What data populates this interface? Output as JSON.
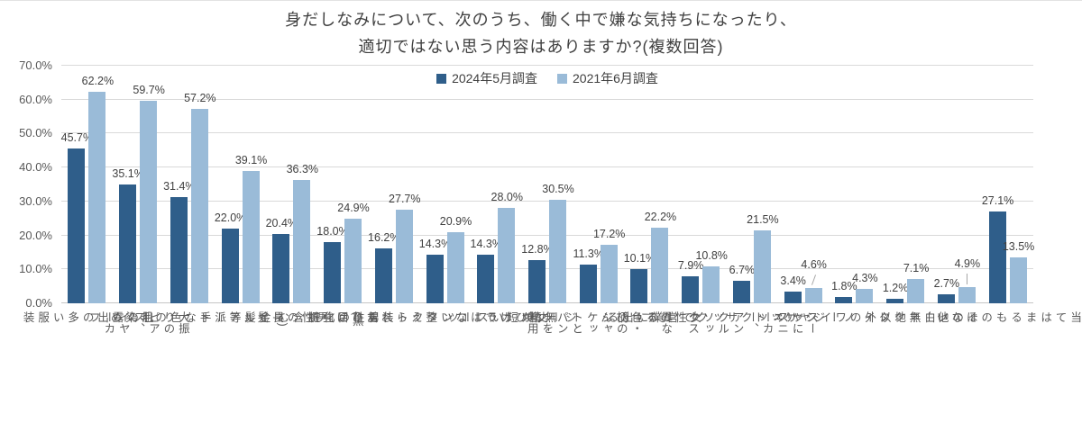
{
  "title": {
    "line1": "身だしなみについて、次のうち、働く中で嫌な気持ちになったり、",
    "line2": "適切ではない思う内容はありますか?(複数回答)"
  },
  "colors": {
    "series_2024": "#2f5e8a",
    "series_2021": "#9abbd8",
    "gridline": "#d9d9d9",
    "axis_text": "#595959",
    "label_text": "#404040"
  },
  "chart_data": {
    "type": "bar",
    "title": "身だしなみについて、次のうち、働く中で嫌な気持ちになったり、適切ではない思う内容はありますか?(複数回答)",
    "xlabel": "",
    "ylabel": "",
    "ylim": [
      0,
      70
    ],
    "yticks": [
      "0.0%",
      "10.0%",
      "20.0%",
      "30.0%",
      "40.0%",
      "50.0%",
      "60.0%",
      "70.0%"
    ],
    "grid": true,
    "legend_position": "top",
    "value_labels": true,
    "categories": [
      "肌の露出の\n多い服装",
      "大振りのピアス、\nイヤーカフ",
      "金髪等派手な\n色の毛染め",
      "ネイルアート",
      "男性の長髪",
      "男性の化粧",
      "カラーコンタクト\n装着(黒目強調含む)",
      "無精ひげではない\n整えられたひげ",
      "丈が短いスーツ",
      "ジーンズ",
      "異なる色・柄のジャ\nケットとパンツを着用",
      "女性のすっぴん",
      "リュックサックで\n営業に出る",
      "スーツにスニーカー、\nアンクルソックス",
      "ノージャケット",
      "白無地以外の\nワイシャツ",
      "ノーネクタイ",
      "その他",
      "当てはまる\nものはない"
    ],
    "series": [
      {
        "name": "2024年5月調査",
        "color": "#2f5e8a",
        "values": [
          45.7,
          35.1,
          31.4,
          22.0,
          20.4,
          18.0,
          16.2,
          14.3,
          14.3,
          12.8,
          11.3,
          10.1,
          7.9,
          6.7,
          3.4,
          1.8,
          1.2,
          2.7,
          27.1
        ]
      },
      {
        "name": "2021年6月調査",
        "color": "#9abbd8",
        "values": [
          62.2,
          59.7,
          57.2,
          39.1,
          36.3,
          24.9,
          27.7,
          20.9,
          28.0,
          30.5,
          17.2,
          22.2,
          10.8,
          21.5,
          4.6,
          4.3,
          7.1,
          4.9,
          13.5
        ]
      }
    ]
  }
}
